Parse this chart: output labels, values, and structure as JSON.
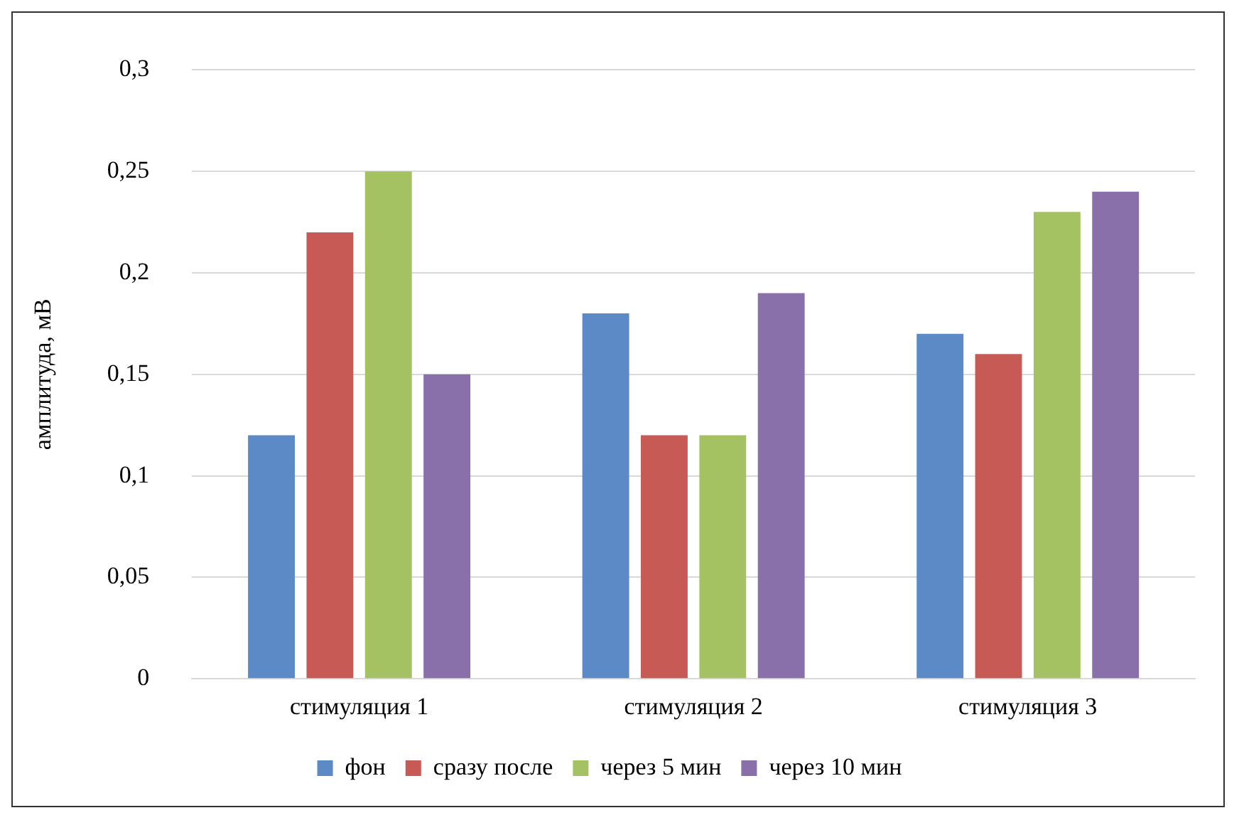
{
  "chart_data": {
    "type": "bar",
    "ylabel": "амплитуда, мВ",
    "categories": [
      "стимуляция 1",
      "стимуляция 2",
      "стимуляция 3"
    ],
    "series": [
      {
        "name": "фон",
        "color": "#5b8ac6",
        "values": [
          0.12,
          0.18,
          0.17
        ]
      },
      {
        "name": "сразу после",
        "color": "#c85a56",
        "values": [
          0.22,
          0.12,
          0.16
        ]
      },
      {
        "name": "через 5 мин",
        "color": "#a5c262",
        "values": [
          0.25,
          0.12,
          0.23
        ]
      },
      {
        "name": "через 10 мин",
        "color": "#8a70aa",
        "values": [
          0.15,
          0.19,
          0.24
        ]
      }
    ],
    "ylim": [
      0,
      0.3
    ],
    "yticks": [
      {
        "value": 0,
        "label": "0"
      },
      {
        "value": 0.05,
        "label": "0,05"
      },
      {
        "value": 0.1,
        "label": "0,1"
      },
      {
        "value": 0.15,
        "label": "0,15"
      },
      {
        "value": 0.2,
        "label": "0,2"
      },
      {
        "value": 0.25,
        "label": "0,25"
      },
      {
        "value": 0.3,
        "label": "0,3"
      }
    ],
    "grid": "y",
    "legend": "bottom"
  }
}
